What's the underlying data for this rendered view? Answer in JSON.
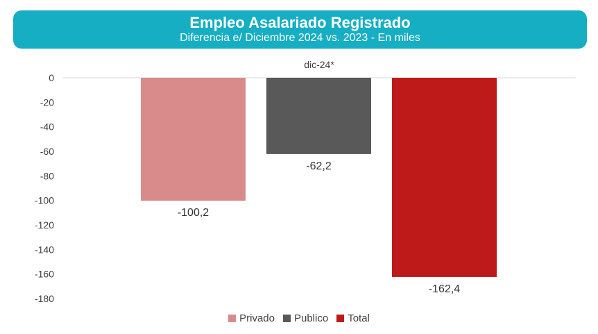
{
  "header": {
    "title": "Empleo Asalariado Registrado",
    "subtitle": "Diferencia e/ Diciembre 2024 vs. 2023 - En miles",
    "background": "#16aec3"
  },
  "chart_data": {
    "type": "bar",
    "title": "Empleo Asalariado Registrado",
    "subtitle": "Diferencia e/ Diciembre 2024 vs. 2023 - En miles",
    "categories": [
      "dic-24*"
    ],
    "series": [
      {
        "name": "Privado",
        "values": [
          -100.2
        ],
        "label": "-100,2",
        "color": "#d98b8b"
      },
      {
        "name": "Publico",
        "values": [
          -62.2
        ],
        "label": "-62,2",
        "color": "#595959"
      },
      {
        "name": "Total",
        "values": [
          -162.4
        ],
        "label": "-162,4",
        "color": "#be1a1a"
      }
    ],
    "ylim": [
      -180,
      0
    ],
    "yticks": [
      "0",
      "-20",
      "-40",
      "-60",
      "-80",
      "-100",
      "-120",
      "-140",
      "-160",
      "-180"
    ],
    "ytick_values": [
      0,
      -20,
      -40,
      -60,
      -80,
      -100,
      -120,
      -140,
      -160,
      -180
    ],
    "category_axis_position": "top",
    "grid": false,
    "legend": "bottom"
  }
}
